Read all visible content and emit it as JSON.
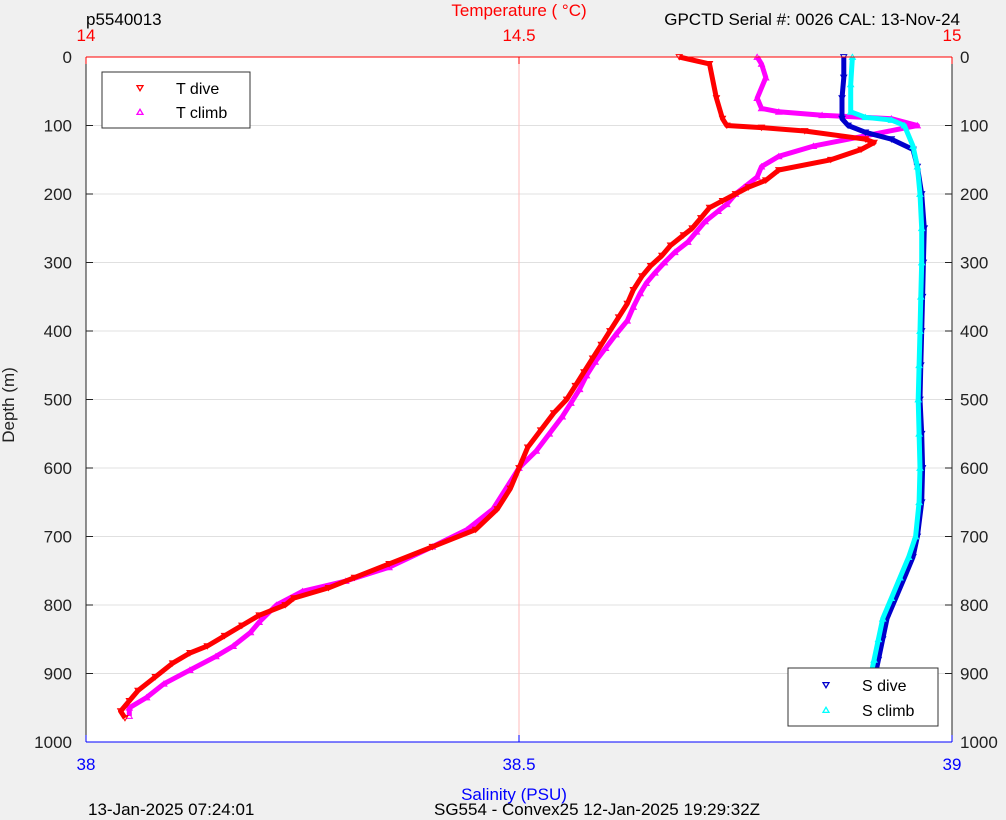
{
  "header": {
    "dive_id": "p5540013",
    "serial": "GPCTD Serial #: 0026 CAL: 13-Nov-24"
  },
  "footer": {
    "timestamp": "13-Jan-2025 07:24:01",
    "mission": "SG554 - Convex25 12-Jan-2025 19:29:32Z"
  },
  "colors": {
    "temperature_axis": "#ff0000",
    "salinity_axis": "#0000ff",
    "t_dive": "#ff0000",
    "t_climb": "#ff00ff",
    "s_dive": "#0000cc",
    "s_climb": "#00ffff",
    "grid": "#e0e0e0",
    "center_line": "#ffbbbb"
  },
  "chart_data": {
    "type": "scatter",
    "y_label": "Depth (m)",
    "y_range": [
      0,
      1000
    ],
    "y_reversed": true,
    "y_ticks": [
      "0",
      "100",
      "200",
      "300",
      "400",
      "500",
      "600",
      "700",
      "800",
      "900",
      "1000"
    ],
    "top_axis": {
      "label": "Temperature (    °C)",
      "range": [
        14,
        15
      ],
      "ticks": [
        "14",
        "14.5",
        "15"
      ]
    },
    "bottom_axis": {
      "label": "Salinity (PSU)",
      "range": [
        38,
        39
      ],
      "ticks": [
        "38",
        "38.5",
        "39"
      ]
    },
    "grid": true,
    "legend_top": {
      "position": "top-left",
      "entries": [
        "T dive",
        "T climb"
      ]
    },
    "legend_bottom": {
      "position": "bottom-right",
      "entries": [
        "S dive",
        "S climb"
      ]
    },
    "series": [
      {
        "name": "T dive",
        "axis": "top",
        "marker": "triangle-down",
        "points": [
          [
            14.685,
            0
          ],
          [
            14.72,
            10
          ],
          [
            14.728,
            60
          ],
          [
            14.735,
            90
          ],
          [
            14.74,
            100
          ],
          [
            14.78,
            103
          ],
          [
            14.83,
            108
          ],
          [
            14.9,
            120
          ],
          [
            14.91,
            125
          ],
          [
            14.895,
            135
          ],
          [
            14.86,
            150
          ],
          [
            14.8,
            165
          ],
          [
            14.785,
            180
          ],
          [
            14.765,
            190
          ],
          [
            14.75,
            200
          ],
          [
            14.735,
            210
          ],
          [
            14.72,
            220
          ],
          [
            14.71,
            235
          ],
          [
            14.7,
            250
          ],
          [
            14.69,
            260
          ],
          [
            14.675,
            275
          ],
          [
            14.665,
            290
          ],
          [
            14.652,
            305
          ],
          [
            14.642,
            320
          ],
          [
            14.632,
            340
          ],
          [
            14.625,
            360
          ],
          [
            14.615,
            380
          ],
          [
            14.605,
            400
          ],
          [
            14.595,
            420
          ],
          [
            14.585,
            440
          ],
          [
            14.575,
            460
          ],
          [
            14.565,
            480
          ],
          [
            14.555,
            500
          ],
          [
            14.54,
            520
          ],
          [
            14.525,
            545
          ],
          [
            14.51,
            570
          ],
          [
            14.5,
            600
          ],
          [
            14.49,
            630
          ],
          [
            14.475,
            660
          ],
          [
            14.45,
            690
          ],
          [
            14.4,
            715
          ],
          [
            14.35,
            740
          ],
          [
            14.31,
            760
          ],
          [
            14.28,
            775
          ],
          [
            14.24,
            790
          ],
          [
            14.23,
            800
          ],
          [
            14.2,
            815
          ],
          [
            14.18,
            830
          ],
          [
            14.16,
            845
          ],
          [
            14.14,
            860
          ],
          [
            14.12,
            870
          ],
          [
            14.1,
            885
          ],
          [
            14.08,
            905
          ],
          [
            14.06,
            925
          ],
          [
            14.05,
            940
          ],
          [
            14.04,
            955
          ],
          [
            14.045,
            965
          ]
        ]
      },
      {
        "name": "T climb",
        "axis": "top",
        "marker": "triangle-up",
        "points": [
          [
            14.775,
            0
          ],
          [
            14.78,
            10
          ],
          [
            14.785,
            30
          ],
          [
            14.775,
            60
          ],
          [
            14.78,
            75
          ],
          [
            14.8,
            80
          ],
          [
            14.85,
            85
          ],
          [
            14.93,
            90
          ],
          [
            14.96,
            100
          ],
          [
            14.9,
            115
          ],
          [
            14.84,
            130
          ],
          [
            14.8,
            145
          ],
          [
            14.78,
            160
          ],
          [
            14.775,
            175
          ],
          [
            14.76,
            190
          ],
          [
            14.75,
            200
          ],
          [
            14.74,
            215
          ],
          [
            14.73,
            225
          ],
          [
            14.715,
            240
          ],
          [
            14.705,
            255
          ],
          [
            14.695,
            270
          ],
          [
            14.68,
            285
          ],
          [
            14.668,
            300
          ],
          [
            14.657,
            315
          ],
          [
            14.647,
            330
          ],
          [
            14.64,
            345
          ],
          [
            14.632,
            365
          ],
          [
            14.625,
            385
          ],
          [
            14.612,
            405
          ],
          [
            14.6,
            425
          ],
          [
            14.588,
            445
          ],
          [
            14.578,
            465
          ],
          [
            14.57,
            485
          ],
          [
            14.56,
            505
          ],
          [
            14.55,
            525
          ],
          [
            14.535,
            550
          ],
          [
            14.52,
            575
          ],
          [
            14.5,
            600
          ],
          [
            14.485,
            630
          ],
          [
            14.47,
            660
          ],
          [
            14.44,
            690
          ],
          [
            14.4,
            715
          ],
          [
            14.35,
            745
          ],
          [
            14.3,
            765
          ],
          [
            14.25,
            780
          ],
          [
            14.22,
            800
          ],
          [
            14.2,
            825
          ],
          [
            14.19,
            840
          ],
          [
            14.17,
            860
          ],
          [
            14.15,
            875
          ],
          [
            14.12,
            895
          ],
          [
            14.09,
            915
          ],
          [
            14.07,
            935
          ],
          [
            14.05,
            950
          ],
          [
            14.05,
            962
          ]
        ]
      },
      {
        "name": "S dive",
        "axis": "bottom",
        "marker": "triangle-down",
        "points": [
          [
            38.875,
            0
          ],
          [
            38.875,
            30
          ],
          [
            38.873,
            60
          ],
          [
            38.873,
            90
          ],
          [
            38.88,
            100
          ],
          [
            38.9,
            110
          ],
          [
            38.93,
            120
          ],
          [
            38.955,
            135
          ],
          [
            38.96,
            160
          ],
          [
            38.965,
            200
          ],
          [
            38.968,
            250
          ],
          [
            38.967,
            300
          ],
          [
            38.966,
            350
          ],
          [
            38.965,
            400
          ],
          [
            38.964,
            450
          ],
          [
            38.963,
            500
          ],
          [
            38.965,
            550
          ],
          [
            38.966,
            600
          ],
          [
            38.965,
            650
          ],
          [
            38.96,
            700
          ],
          [
            38.955,
            730
          ],
          [
            38.945,
            760
          ],
          [
            38.935,
            790
          ],
          [
            38.925,
            820
          ],
          [
            38.92,
            850
          ],
          [
            38.915,
            880
          ],
          [
            38.91,
            910
          ],
          [
            38.905,
            940
          ],
          [
            38.902,
            965
          ]
        ]
      },
      {
        "name": "S climb",
        "axis": "bottom",
        "marker": "triangle-up",
        "points": [
          [
            38.885,
            0
          ],
          [
            38.883,
            40
          ],
          [
            38.883,
            80
          ],
          [
            38.9,
            88
          ],
          [
            38.93,
            92
          ],
          [
            38.945,
            100
          ],
          [
            38.955,
            130
          ],
          [
            38.96,
            160
          ],
          [
            38.963,
            200
          ],
          [
            38.965,
            250
          ],
          [
            38.965,
            300
          ],
          [
            38.964,
            350
          ],
          [
            38.963,
            400
          ],
          [
            38.962,
            450
          ],
          [
            38.961,
            500
          ],
          [
            38.962,
            550
          ],
          [
            38.963,
            600
          ],
          [
            38.962,
            650
          ],
          [
            38.958,
            700
          ],
          [
            38.95,
            730
          ],
          [
            38.94,
            760
          ],
          [
            38.93,
            790
          ],
          [
            38.92,
            820
          ],
          [
            38.915,
            850
          ],
          [
            38.91,
            880
          ],
          [
            38.905,
            910
          ],
          [
            38.9,
            940
          ],
          [
            38.898,
            965
          ]
        ]
      }
    ]
  }
}
